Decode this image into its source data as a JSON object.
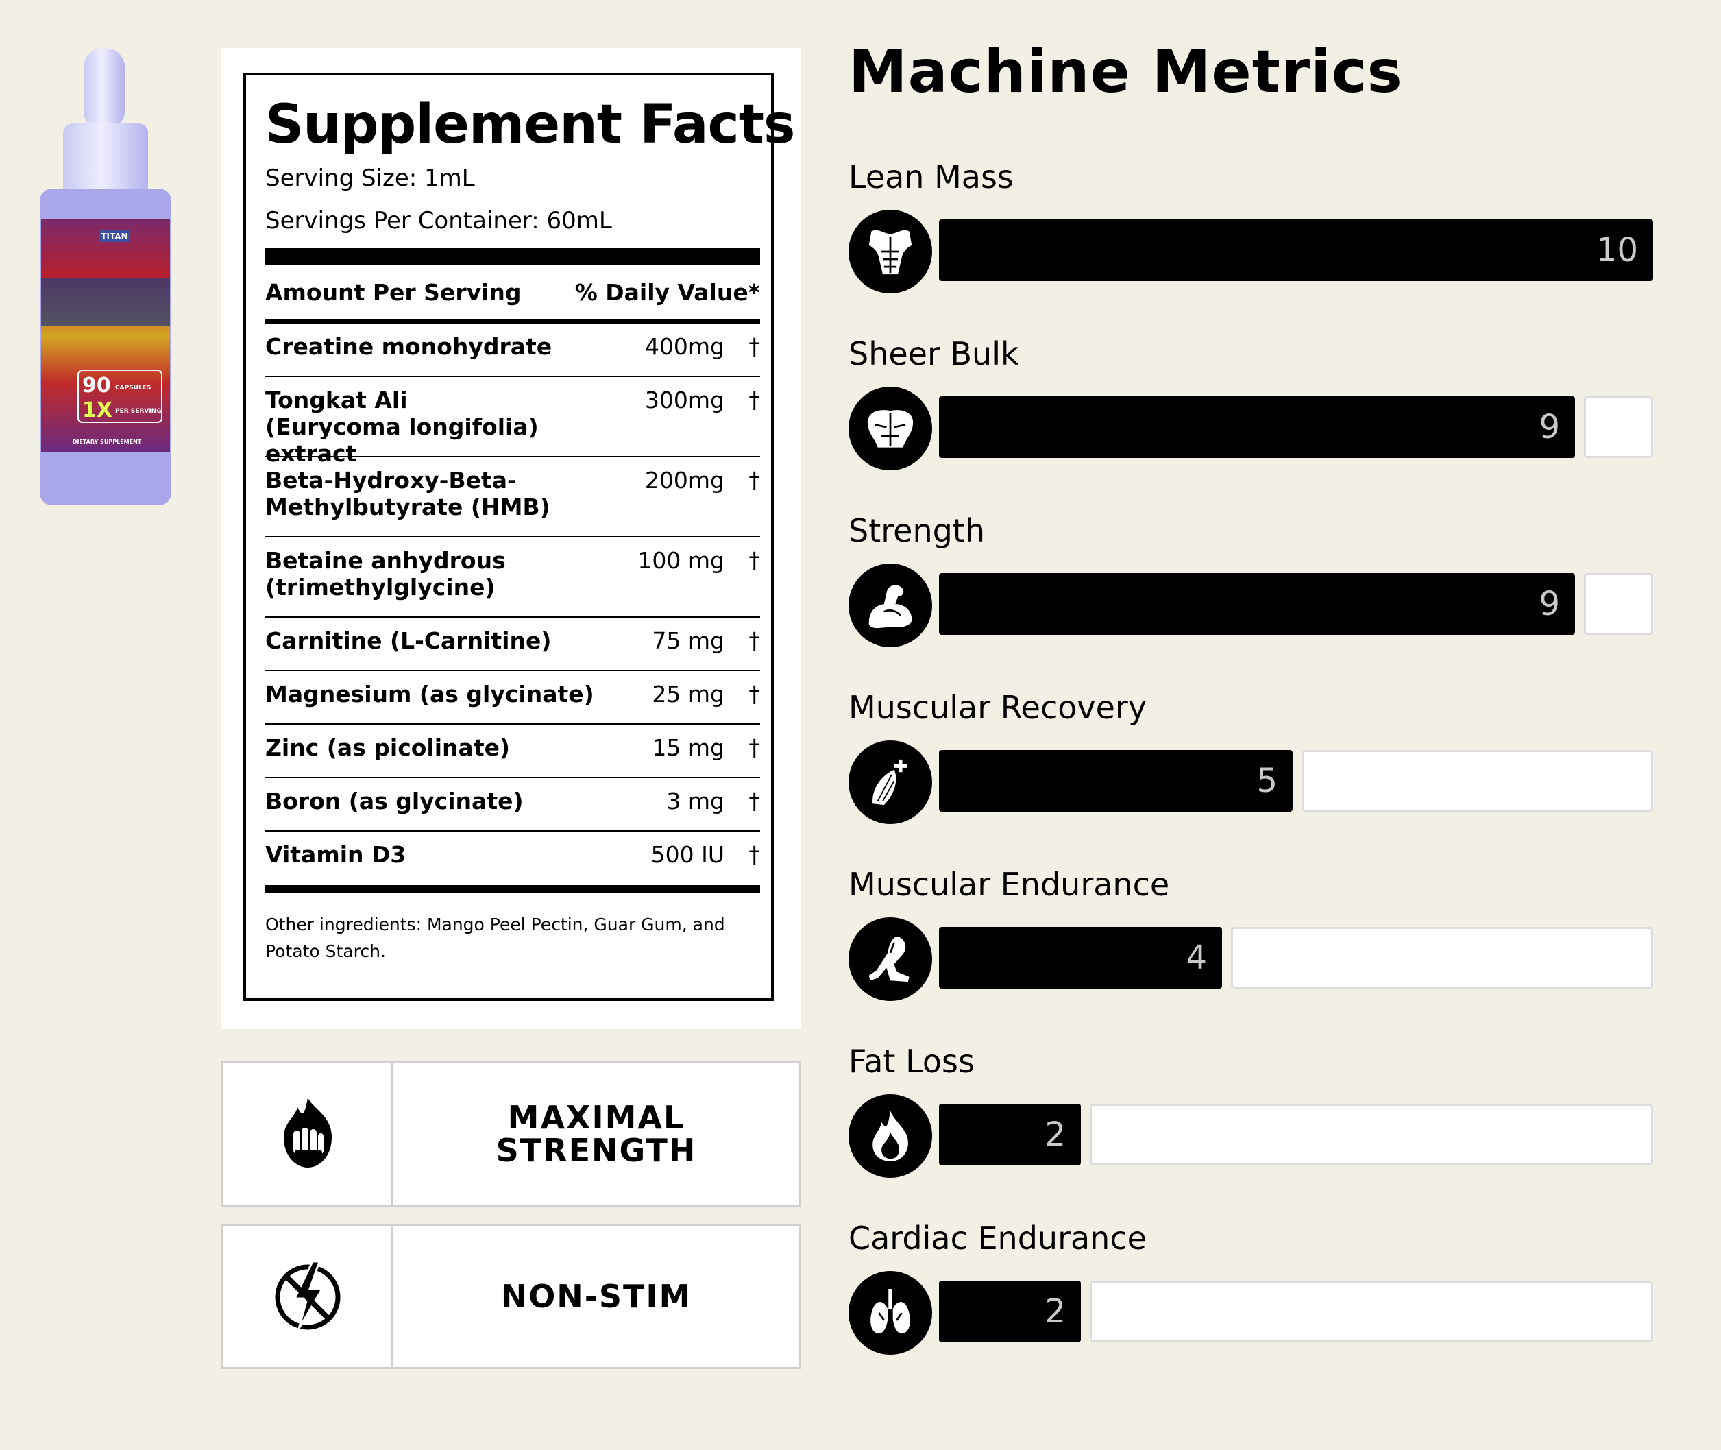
{
  "facts": {
    "title": "Supplement Facts",
    "serving_size": "Serving Size: 1mL",
    "servings_per_container": "Servings Per Container: 60mL",
    "header_left": "Amount Per Serving",
    "header_right": "% Daily Value*",
    "ingredients": [
      {
        "name": "Creatine monohydrate",
        "amount": "400mg",
        "dv": "†"
      },
      {
        "name": "Tongkat Ali\n(Eurycoma longifolia) extract",
        "amount": "300mg",
        "dv": "†"
      },
      {
        "name": "Beta-Hydroxy-Beta-\nMethylbutyrate (HMB)",
        "amount": "200mg",
        "dv": "†"
      },
      {
        "name": "Betaine anhydrous\n(trimethylglycine)",
        "amount": "100 mg",
        "dv": "†"
      },
      {
        "name": "Carnitine (L-Carnitine)",
        "amount": "75 mg",
        "dv": "†"
      },
      {
        "name": "Magnesium (as glycinate)",
        "amount": "25 mg",
        "dv": "†"
      },
      {
        "name": "Zinc (as picolinate)",
        "amount": "15 mg",
        "dv": "†"
      },
      {
        "name": "Boron (as glycinate)",
        "amount": "3 mg",
        "dv": "†"
      },
      {
        "name": "Vitamin D3",
        "amount": "500 IU",
        "dv": "†"
      }
    ],
    "other_ingredients": "Other ingredients: Mango Peel Pectin, Guar Gum, and Potato Starch."
  },
  "features": [
    {
      "label": "MAXIMAL\nSTRENGTH",
      "icon": "flame-fist-icon"
    },
    {
      "label": "NON-STIM",
      "icon": "no-lightning-icon"
    }
  ],
  "bottle": {
    "brand": "TITAN",
    "count": "90",
    "count_unit": "CAPSULES",
    "dose": "1X",
    "dose_unit": "PER SERVING",
    "footer": "DIETARY SUPPLEMENT"
  },
  "metrics": {
    "title": "Machine Metrics",
    "max": 10,
    "items": [
      {
        "label": "Lean Mass",
        "value": 10,
        "display": "10",
        "icon": "torso-icon"
      },
      {
        "label": "Sheer Bulk",
        "value": 9,
        "display": "9",
        "icon": "bulk-muscle-icon"
      },
      {
        "label": "Strength",
        "value": 9,
        "display": "9",
        "icon": "flexed-arm-icon"
      },
      {
        "label": "Muscular Recovery",
        "value": 5,
        "display": "5",
        "icon": "muscle-plus-icon"
      },
      {
        "label": "Muscular Endurance",
        "value": 4,
        "display": "4",
        "icon": "leg-icon"
      },
      {
        "label": "Fat Loss",
        "value": 2,
        "display": "2",
        "icon": "flame-icon"
      },
      {
        "label": "Cardiac Endurance",
        "value": 2,
        "display": "2",
        "icon": "lungs-icon"
      }
    ]
  }
}
